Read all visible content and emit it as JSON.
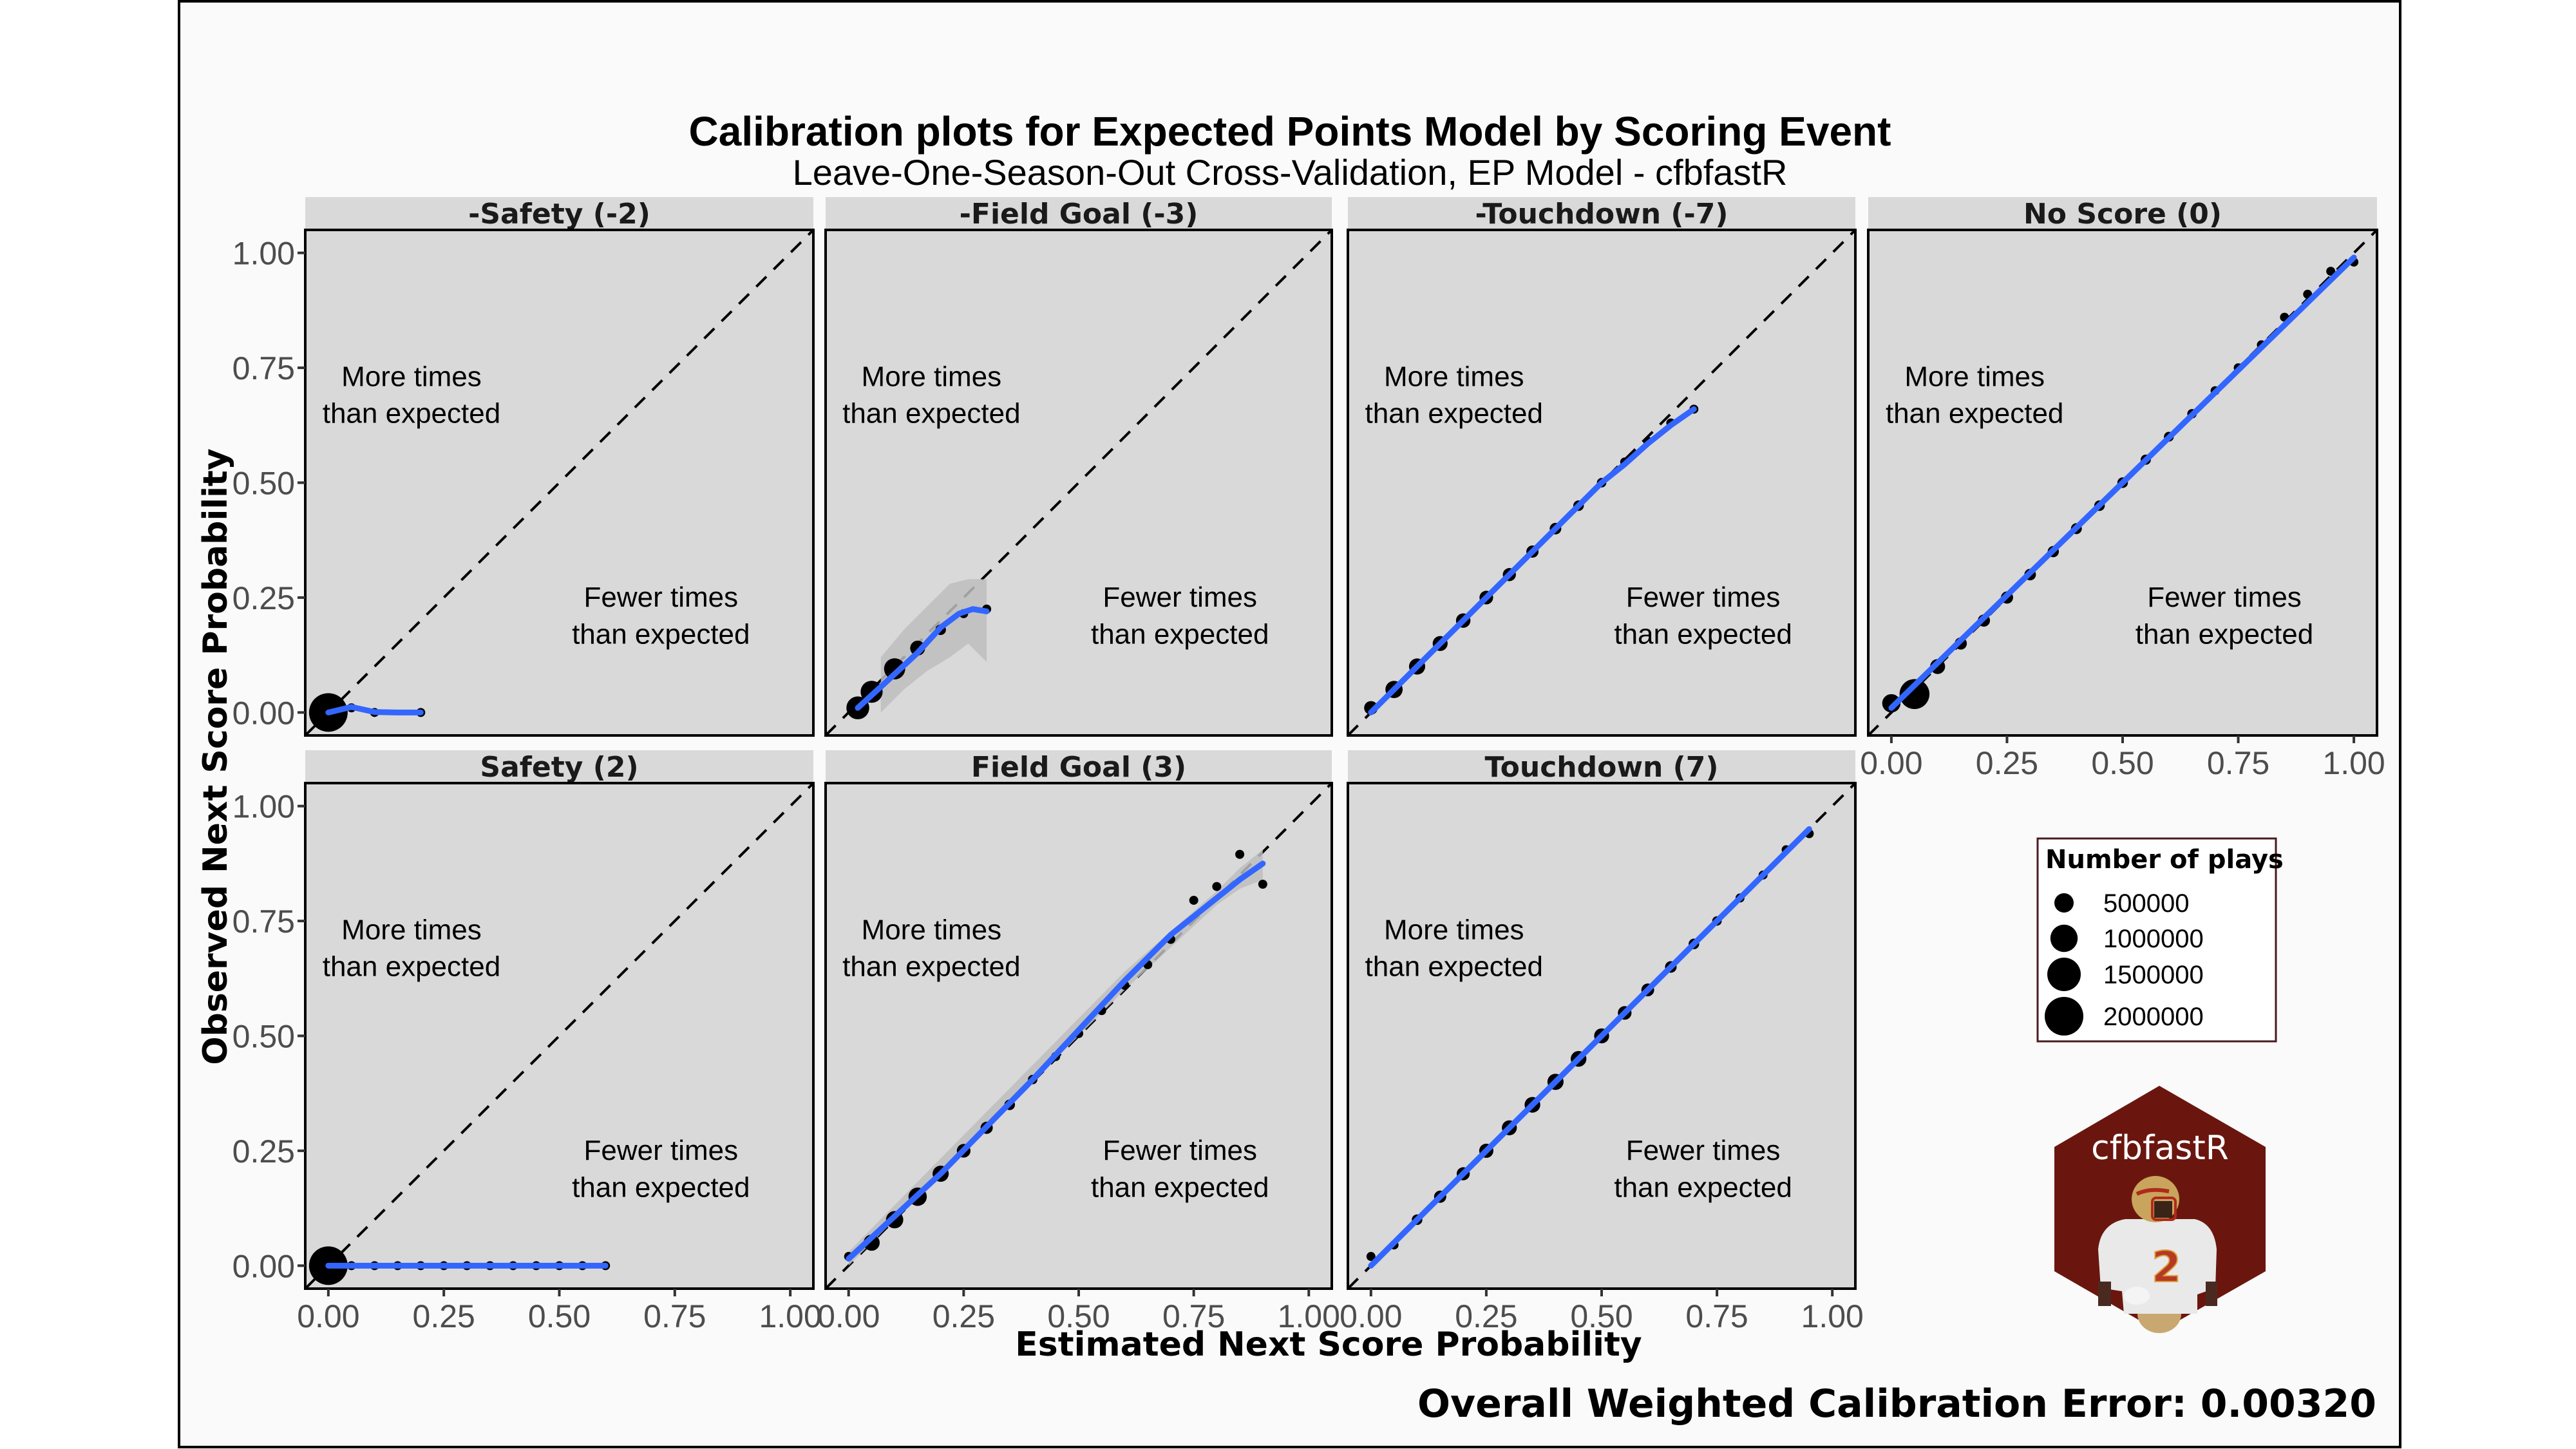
{
  "chart_data": {
    "type": "scatter",
    "title": "Calibration plots for Expected Points Model by Scoring Event",
    "subtitle": "Leave-One-Season-Out Cross-Validation, EP Model - cfbfastR",
    "xlabel": "Estimated Next Score Probability",
    "ylabel": "Observed Next Score Probability",
    "xlim": [
      0,
      1
    ],
    "ylim": [
      0,
      1
    ],
    "x_ticks": [
      "0.00",
      "0.25",
      "0.50",
      "0.75",
      "1.00"
    ],
    "y_ticks": [
      "0.00",
      "0.25",
      "0.50",
      "0.75",
      "1.00"
    ],
    "annotations": {
      "upper": [
        "More times",
        "than expected"
      ],
      "lower": [
        "Fewer times",
        "than expected"
      ]
    },
    "caption": "Overall Weighted Calibration Error: 0.00320",
    "legend": {
      "title": "Number of plays",
      "position": "right",
      "entries": [
        {
          "label": "500000",
          "value": 500000
        },
        {
          "label": "1000000",
          "value": 1000000
        },
        {
          "label": "1500000",
          "value": 1500000
        },
        {
          "label": "2000000",
          "value": 2000000
        }
      ]
    },
    "colors": {
      "smooth_line": "#3366ff",
      "points": "#000000",
      "panel_bg": "#d9d9d9",
      "ribbon": "#bdbdbd",
      "legend_border": "#4a1a1f",
      "logo_bg": "#6a160f"
    },
    "panels": [
      {
        "name": "-Safety (-2)",
        "points": [
          {
            "x": 0.0,
            "y": 0.0,
            "n": 2000000
          },
          {
            "x": 0.05,
            "y": 0.01,
            "n": 30000
          },
          {
            "x": 0.1,
            "y": 0.0,
            "n": 20000
          },
          {
            "x": 0.2,
            "y": 0.0,
            "n": 15000
          }
        ],
        "smooth": [
          [
            0.0,
            0.0
          ],
          [
            0.05,
            0.012
          ],
          [
            0.1,
            0.001
          ],
          [
            0.15,
            0.0
          ],
          [
            0.2,
            0.0
          ]
        ],
        "ribbon": false
      },
      {
        "name": "-Field Goal (-3)",
        "points": [
          {
            "x": 0.02,
            "y": 0.01,
            "n": 700000
          },
          {
            "x": 0.05,
            "y": 0.045,
            "n": 650000
          },
          {
            "x": 0.1,
            "y": 0.095,
            "n": 600000
          },
          {
            "x": 0.15,
            "y": 0.14,
            "n": 300000
          },
          {
            "x": 0.2,
            "y": 0.18,
            "n": 150000
          },
          {
            "x": 0.25,
            "y": 0.215,
            "n": 60000
          },
          {
            "x": 0.3,
            "y": 0.225,
            "n": 20000
          }
        ],
        "smooth": [
          [
            0.02,
            0.01
          ],
          [
            0.08,
            0.065
          ],
          [
            0.15,
            0.13
          ],
          [
            0.2,
            0.185
          ],
          [
            0.24,
            0.215
          ],
          [
            0.27,
            0.225
          ],
          [
            0.3,
            0.22
          ]
        ],
        "ribbon": true,
        "ribbon_band": [
          [
            0.07,
            0.0,
            0.12
          ],
          [
            0.12,
            0.05,
            0.18
          ],
          [
            0.17,
            0.09,
            0.23
          ],
          [
            0.22,
            0.12,
            0.28
          ],
          [
            0.26,
            0.15,
            0.29
          ],
          [
            0.3,
            0.11,
            0.29
          ]
        ]
      },
      {
        "name": "-Touchdown (-7)",
        "points": [
          {
            "x": 0.0,
            "y": 0.01,
            "n": 250000
          },
          {
            "x": 0.05,
            "y": 0.05,
            "n": 400000
          },
          {
            "x": 0.1,
            "y": 0.1,
            "n": 350000
          },
          {
            "x": 0.15,
            "y": 0.15,
            "n": 300000
          },
          {
            "x": 0.2,
            "y": 0.2,
            "n": 280000
          },
          {
            "x": 0.25,
            "y": 0.25,
            "n": 250000
          },
          {
            "x": 0.3,
            "y": 0.3,
            "n": 230000
          },
          {
            "x": 0.35,
            "y": 0.35,
            "n": 200000
          },
          {
            "x": 0.4,
            "y": 0.4,
            "n": 180000
          },
          {
            "x": 0.45,
            "y": 0.45,
            "n": 150000
          },
          {
            "x": 0.5,
            "y": 0.5,
            "n": 120000
          },
          {
            "x": 0.55,
            "y": 0.545,
            "n": 90000
          },
          {
            "x": 0.6,
            "y": 0.59,
            "n": 60000
          },
          {
            "x": 0.65,
            "y": 0.63,
            "n": 40000
          },
          {
            "x": 0.7,
            "y": 0.66,
            "n": 20000
          }
        ],
        "smooth": [
          [
            0.0,
            0.0
          ],
          [
            0.5,
            0.5
          ],
          [
            0.55,
            0.54
          ],
          [
            0.6,
            0.585
          ],
          [
            0.65,
            0.625
          ],
          [
            0.7,
            0.66
          ]
        ],
        "ribbon": false
      },
      {
        "name": "No Score (0)",
        "points": [
          {
            "x": 0.0,
            "y": 0.02,
            "n": 450000
          },
          {
            "x": 0.05,
            "y": 0.04,
            "n": 1200000
          },
          {
            "x": 0.1,
            "y": 0.1,
            "n": 300000
          },
          {
            "x": 0.15,
            "y": 0.15,
            "n": 200000
          },
          {
            "x": 0.2,
            "y": 0.2,
            "n": 200000
          },
          {
            "x": 0.25,
            "y": 0.25,
            "n": 200000
          },
          {
            "x": 0.3,
            "y": 0.3,
            "n": 180000
          },
          {
            "x": 0.35,
            "y": 0.35,
            "n": 170000
          },
          {
            "x": 0.4,
            "y": 0.4,
            "n": 160000
          },
          {
            "x": 0.45,
            "y": 0.45,
            "n": 150000
          },
          {
            "x": 0.5,
            "y": 0.5,
            "n": 150000
          },
          {
            "x": 0.55,
            "y": 0.55,
            "n": 140000
          },
          {
            "x": 0.6,
            "y": 0.6,
            "n": 130000
          },
          {
            "x": 0.65,
            "y": 0.65,
            "n": 120000
          },
          {
            "x": 0.7,
            "y": 0.7,
            "n": 110000
          },
          {
            "x": 0.75,
            "y": 0.75,
            "n": 100000
          },
          {
            "x": 0.8,
            "y": 0.8,
            "n": 80000
          },
          {
            "x": 0.85,
            "y": 0.86,
            "n": 60000
          },
          {
            "x": 0.9,
            "y": 0.91,
            "n": 40000
          },
          {
            "x": 0.95,
            "y": 0.96,
            "n": 30000
          },
          {
            "x": 1.0,
            "y": 0.98,
            "n": 20000
          }
        ],
        "smooth": [
          [
            0.0,
            0.01
          ],
          [
            1.0,
            0.99
          ]
        ],
        "ribbon": false
      },
      {
        "name": "Safety (2)",
        "points": [
          {
            "x": 0.0,
            "y": 0.0,
            "n": 2000000
          },
          {
            "x": 0.05,
            "y": 0.0,
            "n": 15000
          },
          {
            "x": 0.1,
            "y": 0.0,
            "n": 15000
          },
          {
            "x": 0.15,
            "y": 0.0,
            "n": 15000
          },
          {
            "x": 0.2,
            "y": 0.0,
            "n": 15000
          },
          {
            "x": 0.25,
            "y": 0.0,
            "n": 15000
          },
          {
            "x": 0.3,
            "y": 0.0,
            "n": 15000
          },
          {
            "x": 0.35,
            "y": 0.0,
            "n": 15000
          },
          {
            "x": 0.4,
            "y": 0.0,
            "n": 15000
          },
          {
            "x": 0.45,
            "y": 0.0,
            "n": 15000
          },
          {
            "x": 0.5,
            "y": 0.0,
            "n": 15000
          },
          {
            "x": 0.55,
            "y": 0.0,
            "n": 15000
          },
          {
            "x": 0.6,
            "y": 0.0,
            "n": 15000
          }
        ],
        "smooth": [
          [
            0.0,
            0.0
          ],
          [
            0.6,
            0.0
          ]
        ],
        "ribbon": false
      },
      {
        "name": "Field Goal (3)",
        "points": [
          {
            "x": 0.0,
            "y": 0.02,
            "n": 100000
          },
          {
            "x": 0.05,
            "y": 0.05,
            "n": 350000
          },
          {
            "x": 0.1,
            "y": 0.1,
            "n": 400000
          },
          {
            "x": 0.15,
            "y": 0.15,
            "n": 450000
          },
          {
            "x": 0.2,
            "y": 0.2,
            "n": 350000
          },
          {
            "x": 0.25,
            "y": 0.25,
            "n": 250000
          },
          {
            "x": 0.3,
            "y": 0.3,
            "n": 200000
          },
          {
            "x": 0.35,
            "y": 0.35,
            "n": 150000
          },
          {
            "x": 0.4,
            "y": 0.405,
            "n": 120000
          },
          {
            "x": 0.45,
            "y": 0.455,
            "n": 100000
          },
          {
            "x": 0.5,
            "y": 0.505,
            "n": 80000
          },
          {
            "x": 0.55,
            "y": 0.555,
            "n": 60000
          },
          {
            "x": 0.6,
            "y": 0.61,
            "n": 50000
          },
          {
            "x": 0.65,
            "y": 0.655,
            "n": 40000
          },
          {
            "x": 0.7,
            "y": 0.71,
            "n": 30000
          },
          {
            "x": 0.75,
            "y": 0.795,
            "n": 20000
          },
          {
            "x": 0.8,
            "y": 0.825,
            "n": 15000
          },
          {
            "x": 0.85,
            "y": 0.895,
            "n": 12000
          },
          {
            "x": 0.9,
            "y": 0.83,
            "n": 8000
          }
        ],
        "smooth": [
          [
            0.0,
            0.015
          ],
          [
            0.2,
            0.2
          ],
          [
            0.4,
            0.405
          ],
          [
            0.6,
            0.62
          ],
          [
            0.65,
            0.67
          ],
          [
            0.7,
            0.72
          ],
          [
            0.75,
            0.76
          ],
          [
            0.8,
            0.8
          ],
          [
            0.85,
            0.84
          ],
          [
            0.9,
            0.875
          ]
        ],
        "ribbon": true,
        "ribbon_band": [
          [
            0.0,
            0.0,
            0.03
          ],
          [
            0.6,
            0.6,
            0.64
          ],
          [
            0.8,
            0.785,
            0.815
          ],
          [
            0.85,
            0.82,
            0.865
          ],
          [
            0.9,
            0.84,
            0.905
          ]
        ]
      },
      {
        "name": "Touchdown (7)",
        "points": [
          {
            "x": 0.0,
            "y": 0.02,
            "n": 60000
          },
          {
            "x": 0.05,
            "y": 0.045,
            "n": 100000
          },
          {
            "x": 0.1,
            "y": 0.1,
            "n": 150000
          },
          {
            "x": 0.15,
            "y": 0.15,
            "n": 200000
          },
          {
            "x": 0.2,
            "y": 0.2,
            "n": 230000
          },
          {
            "x": 0.25,
            "y": 0.25,
            "n": 270000
          },
          {
            "x": 0.3,
            "y": 0.3,
            "n": 300000
          },
          {
            "x": 0.35,
            "y": 0.35,
            "n": 330000
          },
          {
            "x": 0.4,
            "y": 0.4,
            "n": 350000
          },
          {
            "x": 0.45,
            "y": 0.45,
            "n": 330000
          },
          {
            "x": 0.5,
            "y": 0.5,
            "n": 300000
          },
          {
            "x": 0.55,
            "y": 0.55,
            "n": 250000
          },
          {
            "x": 0.6,
            "y": 0.6,
            "n": 220000
          },
          {
            "x": 0.65,
            "y": 0.65,
            "n": 180000
          },
          {
            "x": 0.7,
            "y": 0.7,
            "n": 150000
          },
          {
            "x": 0.75,
            "y": 0.75,
            "n": 120000
          },
          {
            "x": 0.8,
            "y": 0.8,
            "n": 100000
          },
          {
            "x": 0.85,
            "y": 0.85,
            "n": 80000
          },
          {
            "x": 0.9,
            "y": 0.905,
            "n": 60000
          },
          {
            "x": 0.95,
            "y": 0.94,
            "n": 40000
          }
        ],
        "smooth": [
          [
            0.0,
            0.0
          ],
          [
            0.95,
            0.95
          ]
        ],
        "ribbon": false
      }
    ]
  },
  "logo": {
    "text": "cfbfastR",
    "jersey_number": "2"
  }
}
